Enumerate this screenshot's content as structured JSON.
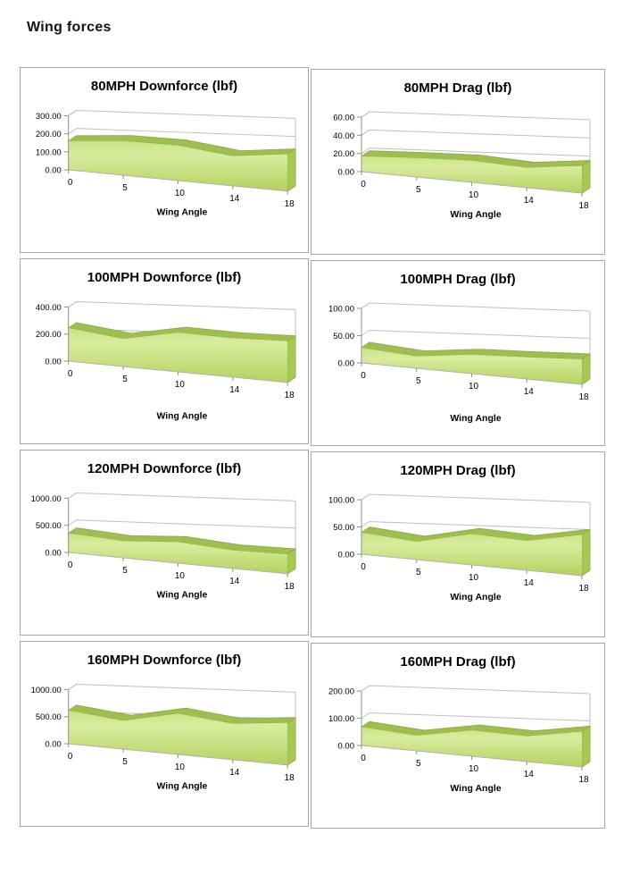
{
  "page": {
    "title": "Wing forces"
  },
  "style": {
    "area_grad_top": "#c9e184",
    "area_grad_mid": "#d9ec9e",
    "area_grad_bottom": "#b3d25f",
    "band": "#9dbf4f",
    "side": "#a5c953",
    "edge": "#8dac42",
    "grid": "#bfbfbf",
    "axis": "#8f8f8f",
    "floor": "#b0b0b0",
    "panel_border": "#a6a6a6",
    "text": "#000000"
  },
  "chart_data": [
    {
      "type": "area",
      "title": "80MPH Downforce (lbf)",
      "xlabel": "Wing Angle",
      "categories": [
        "0",
        "5",
        "10",
        "14",
        "18"
      ],
      "values": [
        160,
        190,
        195,
        165,
        205
      ],
      "ymax": 300,
      "ylim": [
        0,
        300
      ],
      "ytick_labels": [
        "0.00",
        "100.00",
        "200.00",
        "300.00"
      ],
      "grid": true,
      "legend": "none",
      "xlabel_y": 127
    },
    {
      "type": "area",
      "title": "80MPH Drag (lbf)",
      "xlabel": "Wing Angle",
      "categories": [
        "0",
        "5",
        "10",
        "14",
        "18"
      ],
      "values": [
        17,
        21,
        24,
        22,
        30
      ],
      "ymax": 60,
      "ylim": [
        0,
        60
      ],
      "ytick_labels": [
        "0.00",
        "20.00",
        "40.00",
        "60.00"
      ],
      "grid": true,
      "legend": "none",
      "xlabel_y": 127
    },
    {
      "type": "area",
      "title": "100MPH Downforce (lbf)",
      "xlabel": "Wing Angle",
      "categories": [
        "0",
        "5",
        "10",
        "14",
        "18"
      ],
      "values": [
        245,
        205,
        290,
        288,
        305
      ],
      "ymax": 400,
      "ylim": [
        0,
        400
      ],
      "ytick_labels": [
        "0.00",
        "200.00",
        "400.00"
      ],
      "grid": true,
      "legend": "none",
      "xlabel_y": 141
    },
    {
      "type": "area",
      "title": "100MPH Drag (lbf)",
      "xlabel": "Wing Angle",
      "categories": [
        "0",
        "5",
        "10",
        "14",
        "18"
      ],
      "values": [
        28,
        22,
        35,
        40,
        46
      ],
      "ymax": 100,
      "ylim": [
        0,
        100
      ],
      "ytick_labels": [
        "0.00",
        "50.00",
        "100.00"
      ],
      "grid": true,
      "legend": "none",
      "xlabel_y": 141
    },
    {
      "type": "area",
      "title": "120MPH Downforce (lbf)",
      "xlabel": "Wing Angle",
      "categories": [
        "0",
        "5",
        "10",
        "14",
        "18"
      ],
      "values": [
        355,
        310,
        390,
        335,
        360
      ],
      "ymax": 1000,
      "ylim": [
        0,
        1000
      ],
      "ytick_labels": [
        "0.00",
        "500.00",
        "1000.00"
      ],
      "grid": true,
      "legend": "none",
      "xlabel_y": 127
    },
    {
      "type": "area",
      "title": "120MPH Drag (lbf)",
      "xlabel": "Wing Angle",
      "categories": [
        "0",
        "5",
        "10",
        "14",
        "18"
      ],
      "values": [
        40,
        33,
        57,
        54,
        75
      ],
      "ymax": 100,
      "ylim": [
        0,
        100
      ],
      "ytick_labels": [
        "0.00",
        "50.00",
        "100.00"
      ],
      "grid": true,
      "legend": "none",
      "xlabel_y": 127
    },
    {
      "type": "area",
      "title": "160MPH Downforce (lbf)",
      "xlabel": "Wing Angle",
      "categories": [
        "0",
        "5",
        "10",
        "14",
        "18"
      ],
      "values": [
        615,
        525,
        755,
        665,
        780
      ],
      "ymax": 1000,
      "ylim": [
        0,
        1000
      ],
      "ytick_labels": [
        "0.00",
        "500.00",
        "1000.00"
      ],
      "grid": true,
      "legend": "none",
      "xlabel_y": 127
    },
    {
      "type": "area",
      "title": "160MPH Drag (lbf)",
      "xlabel": "Wing Angle",
      "categories": [
        "0",
        "5",
        "10",
        "14",
        "18"
      ],
      "values": [
        68,
        56,
        95,
        93,
        130
      ],
      "ymax": 200,
      "ylim": [
        0,
        200
      ],
      "ytick_labels": [
        "0.00",
        "100.00",
        "200.00"
      ],
      "grid": true,
      "legend": "none",
      "xlabel_y": 127
    }
  ]
}
